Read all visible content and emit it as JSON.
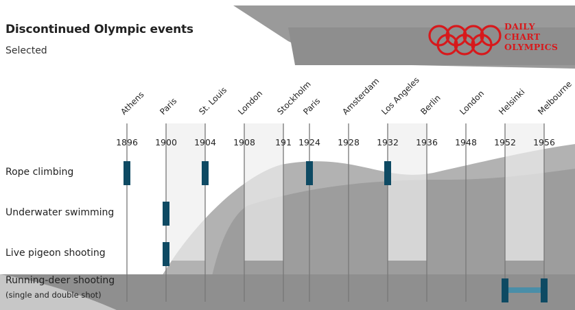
{
  "header": {
    "title": "Discontinued Olympic events",
    "subtitle": "Selected"
  },
  "brand": {
    "line1": "DAILY",
    "line2": "CHART",
    "line3": "OLYMPICS",
    "color": "#d7191c"
  },
  "rows": {
    "rope_climbing": "Rope climbing",
    "underwater_swimming": "Underwater swimming",
    "live_pigeon_shooting": "Live pigeon shooting",
    "running_deer_shooting": "Running-deer shooting",
    "running_deer_sub": "(single and double shot)"
  },
  "colors": {
    "event_bar": "#0e4a63",
    "event_bar_light": "#4a8ea8",
    "gridline": "#777777",
    "column_shade": "#eeeeee"
  },
  "chart_data": {
    "type": "timeline",
    "title": "Discontinued Olympic events",
    "subtitle": "Selected",
    "games": [
      {
        "year": "1896",
        "city": "Athens"
      },
      {
        "year": "1900",
        "city": "Paris"
      },
      {
        "year": "1904",
        "city": "St. Louis"
      },
      {
        "year": "1908",
        "city": "London"
      },
      {
        "year": "191",
        "city": "Stockholm"
      },
      {
        "year": "1924",
        "city": "Paris"
      },
      {
        "year": "1928",
        "city": "Amsterdam"
      },
      {
        "year": "1932",
        "city": "Los Angeles"
      },
      {
        "year": "1936",
        "city": "Berlin"
      },
      {
        "year": "1948",
        "city": "London"
      },
      {
        "year": "1952",
        "city": "Helsinki"
      },
      {
        "year": "1956",
        "city": "Melbourne"
      }
    ],
    "events": [
      {
        "row": "Rope climbing",
        "held": [
          "1896",
          "1904",
          "1924",
          "1932"
        ]
      },
      {
        "row": "Underwater swimming",
        "held": [
          "1900"
        ]
      },
      {
        "row": "Live pigeon shooting",
        "held": [
          "1900"
        ]
      },
      {
        "row": "Running-deer shooting",
        "held": [
          "1952",
          "1956"
        ]
      }
    ]
  }
}
